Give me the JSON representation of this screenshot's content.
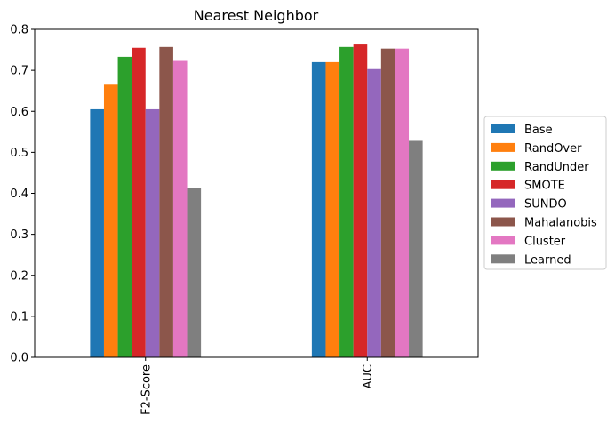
{
  "chart_data": {
    "type": "bar",
    "title": "Nearest Neighbor",
    "xlabel": "",
    "ylabel": "",
    "categories": [
      "F2-Score",
      "AUC"
    ],
    "ylim": [
      0,
      0.8
    ],
    "yticks": [
      "0.0",
      "0.1",
      "0.2",
      "0.3",
      "0.4",
      "0.5",
      "0.6",
      "0.7",
      "0.8"
    ],
    "grid": false,
    "legend_position": "right",
    "series": [
      {
        "name": "Base",
        "color": "#1f77b4",
        "values": [
          0.605,
          0.72
        ]
      },
      {
        "name": "RandOver",
        "color": "#ff7f0e",
        "values": [
          0.665,
          0.72
        ]
      },
      {
        "name": "RandUnder",
        "color": "#2ca02c",
        "values": [
          0.733,
          0.757
        ]
      },
      {
        "name": "SMOTE",
        "color": "#d62728",
        "values": [
          0.755,
          0.763
        ]
      },
      {
        "name": "SUNDO",
        "color": "#9467bd",
        "values": [
          0.605,
          0.703
        ]
      },
      {
        "name": "Mahalanobis",
        "color": "#8c564b",
        "values": [
          0.757,
          0.753
        ]
      },
      {
        "name": "Cluster",
        "color": "#e377c2",
        "values": [
          0.723,
          0.753
        ]
      },
      {
        "name": "Learned",
        "color": "#7f7f7f",
        "values": [
          0.412,
          0.528
        ]
      }
    ]
  }
}
